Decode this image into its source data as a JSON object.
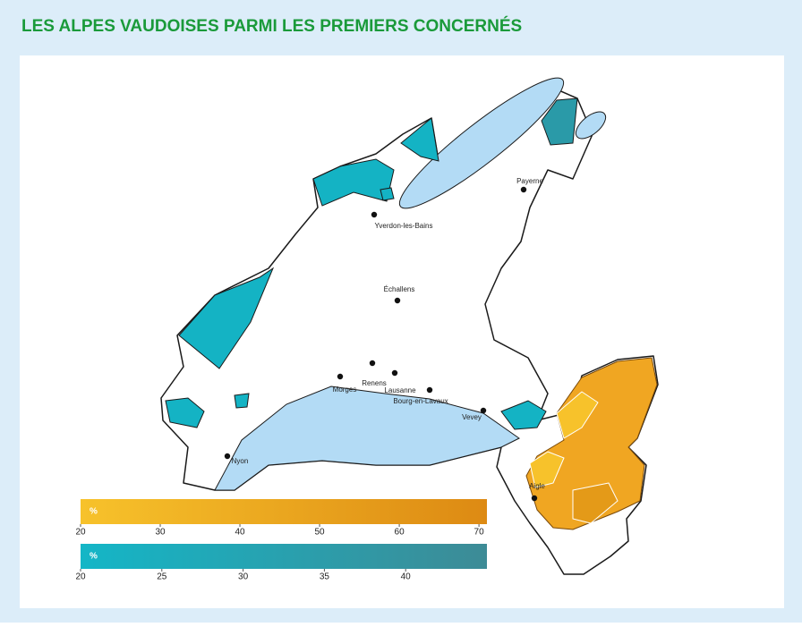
{
  "title": "LES ALPES VAUDOISES PARMI LES PREMIERS CONCERNÉS",
  "cities": [
    "Payerne",
    "Yverdon-les-Bains",
    "Échallens",
    "Renens",
    "Morges",
    "Lausanne",
    "Bourg-en-Lavaux",
    "Vevey",
    "Nyon",
    "Aigle"
  ],
  "legends": [
    {
      "unit": "%",
      "range": [
        20,
        71
      ],
      "ticks": [
        20,
        30,
        40,
        50,
        60,
        70
      ],
      "colors": [
        "#f7c22b",
        "#dd8a13"
      ]
    },
    {
      "unit": "%",
      "range": [
        20,
        45
      ],
      "ticks": [
        20,
        25,
        30,
        35,
        40
      ],
      "colors": [
        "#14b6c7",
        "#3d8b96"
      ]
    }
  ]
}
